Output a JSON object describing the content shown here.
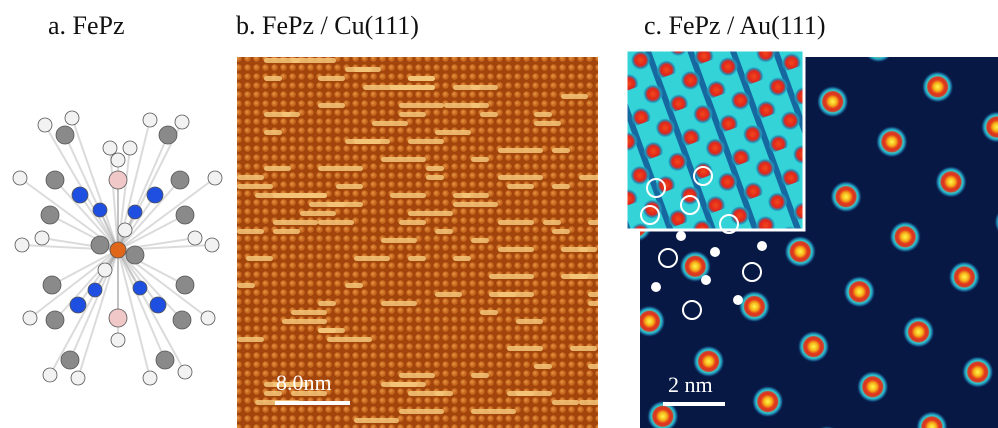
{
  "panels": [
    {
      "label": "a. FePz"
    },
    {
      "label": "b. FePz / Cu(111)",
      "scale_bar": "8.0nm"
    },
    {
      "label": "c. FePz / Au(111)",
      "scale_bar": "2 nm"
    }
  ]
}
